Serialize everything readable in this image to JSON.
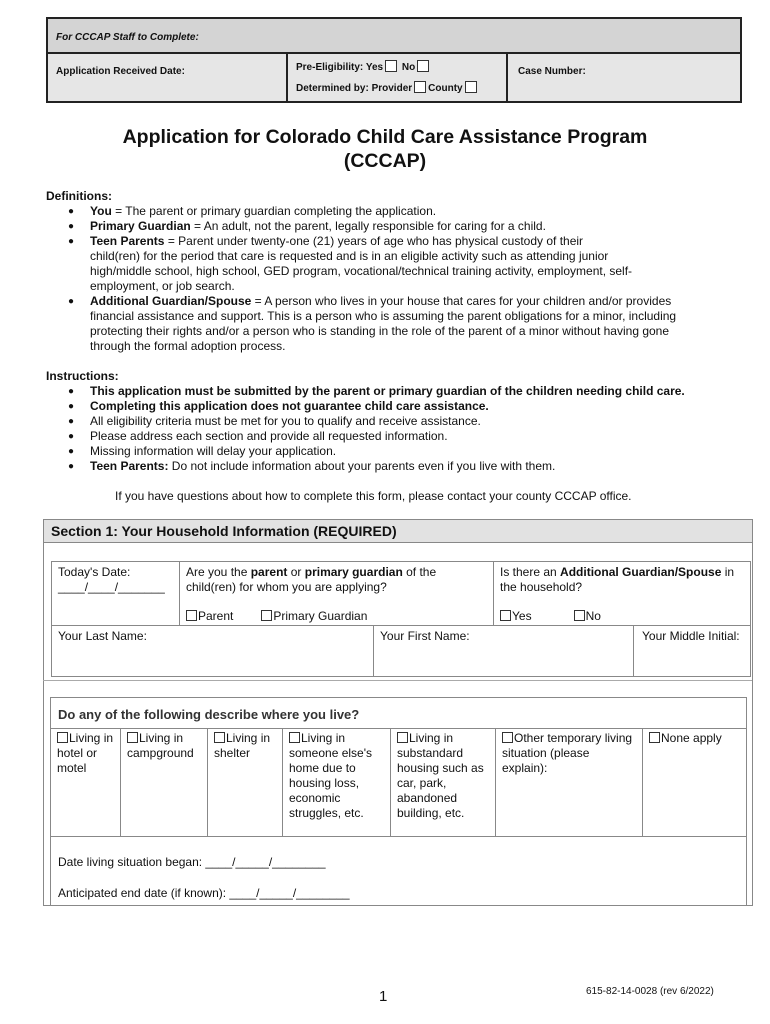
{
  "staff_box": {
    "header": "For CCCAP Staff to Complete:",
    "received_date": "Application Received Date:",
    "pre_eligibility": "Pre-Eligibility: Yes",
    "no": "No",
    "determined_by": "Determined by: Provider",
    "county": "County",
    "case_number": "Case Number:"
  },
  "title": {
    "line1": "Application for Colorado Child Care Assistance Program",
    "line2": "(CCCAP)"
  },
  "definitions": {
    "heading": "Definitions:",
    "items": [
      {
        "term": "You",
        "text": " = The parent or primary guardian completing the application."
      },
      {
        "term": "Primary Guardian",
        "text": " = An adult, not the parent, legally responsible for caring for a child."
      },
      {
        "term": "Teen Parents",
        "text": " = Parent under twenty-one (21) years of age who has physical custody of their",
        "cont": [
          "child(ren) for the period that care is requested and is in an eligible activity such as attending junior",
          "high/middle school, high school, GED program, vocational/technical training activity, employment, self-",
          "employment, or job search."
        ]
      },
      {
        "term": "Additional Guardian/Spouse",
        "text": " = A person who lives in your house that cares for your children and/or provides",
        "cont": [
          "financial assistance and support. This is a person who is assuming the parent obligations for a minor, including",
          "protecting their rights and/or a person who is standing in the role of the parent of a minor without having gone",
          "through the formal adoption process."
        ]
      }
    ]
  },
  "instructions": {
    "heading": "Instructions:",
    "items": [
      "This application must be submitted by the parent or primary guardian of the children needing child care.",
      "Completing this application does not guarantee child care assistance.",
      "All eligibility criteria must be met for you to qualify and receive assistance.",
      "Please address each section and provide all requested information.",
      "Missing information will delay your application."
    ],
    "teen_term": "Teen Parents:",
    "teen_text": " Do not include information about your parents even if you live with them.",
    "contact": "If you have questions about how to complete this form, please contact your county CCCAP office."
  },
  "section1": {
    "header": "Section 1:  Your Household Information (REQUIRED)",
    "todays_date": "Today's Date:",
    "date_blank": "____/____/_______",
    "q_parent": {
      "a": "Are you the ",
      "b": "parent",
      "c": " or ",
      "d": "primary guardian",
      "e": " of the child(ren) for whom you are applying?",
      "opt1": "Parent",
      "opt2": "Primary Guardian"
    },
    "q_spouse": {
      "a": "Is there an ",
      "b": "Additional Guardian/Spouse",
      "c": " in the household?",
      "opt1": "Yes",
      "opt2": "No"
    },
    "last_name": "Your Last Name:",
    "first_name": "Your First Name:",
    "middle_initial": "Your Middle Initial:",
    "living_question": "Do any of the following describe where you live?",
    "living_options": [
      "Living in hotel or motel",
      "Living in campground",
      "Living in shelter",
      "Living in someone else's home due to housing loss, economic struggles, etc.",
      "Living in substandard housing such as car, park, abandoned building, etc.",
      "Other temporary living situation (please explain):",
      "None apply"
    ],
    "date_began": "Date living situation began: ____/_____/________",
    "end_date": "Anticipated end date (if known): ____/_____/________"
  },
  "footer": {
    "page": "1",
    "form_number": "615-82-14-0028 (rev 6/2022)"
  }
}
